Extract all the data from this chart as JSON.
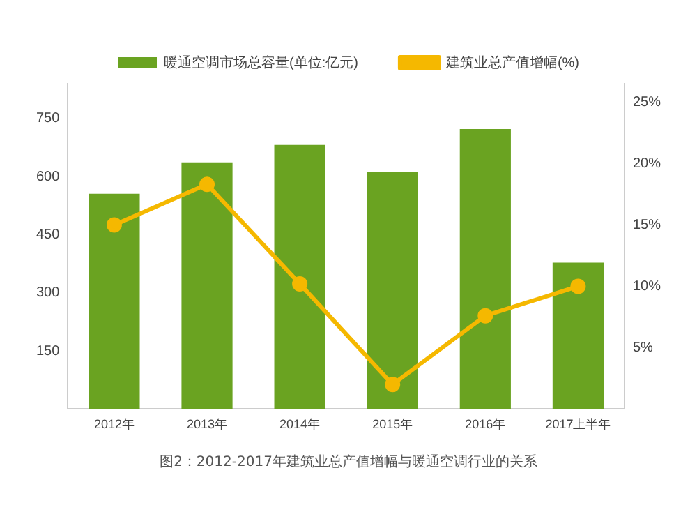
{
  "chart_data": {
    "type": "bar",
    "categories": [
      "2012年",
      "2013年",
      "2014年",
      "2015年",
      "2016年",
      "2017上半年"
    ],
    "series": [
      {
        "name": "暖通空调市场总容量(单位:亿元)",
        "color": "#6aa321",
        "values": [
          556,
          637,
          682,
          612,
          723,
          378
        ]
      },
      {
        "name": "建筑业总产值增幅(%)",
        "type": "line",
        "axis": "y2",
        "color": "#f5b800",
        "values": [
          15,
          18.3,
          10.2,
          2,
          7.6,
          10
        ]
      }
    ],
    "ylim": [
      0,
      840
    ],
    "yticks": [
      150,
      300,
      450,
      600,
      750
    ],
    "y2lim": [
      0,
      26.5
    ],
    "y2ticks": [
      {
        "value": 5,
        "label": "5%"
      },
      {
        "value": 10,
        "label": "10%"
      },
      {
        "value": 15,
        "label": "15%"
      },
      {
        "value": 20,
        "label": "20%"
      },
      {
        "value": 25,
        "label": "25%"
      }
    ],
    "marker": "circle",
    "grid": false,
    "legend": "top",
    "annotations": [
      "图2：2012-2017年建筑业总产值增幅与暖通空调行业的关系"
    ]
  }
}
